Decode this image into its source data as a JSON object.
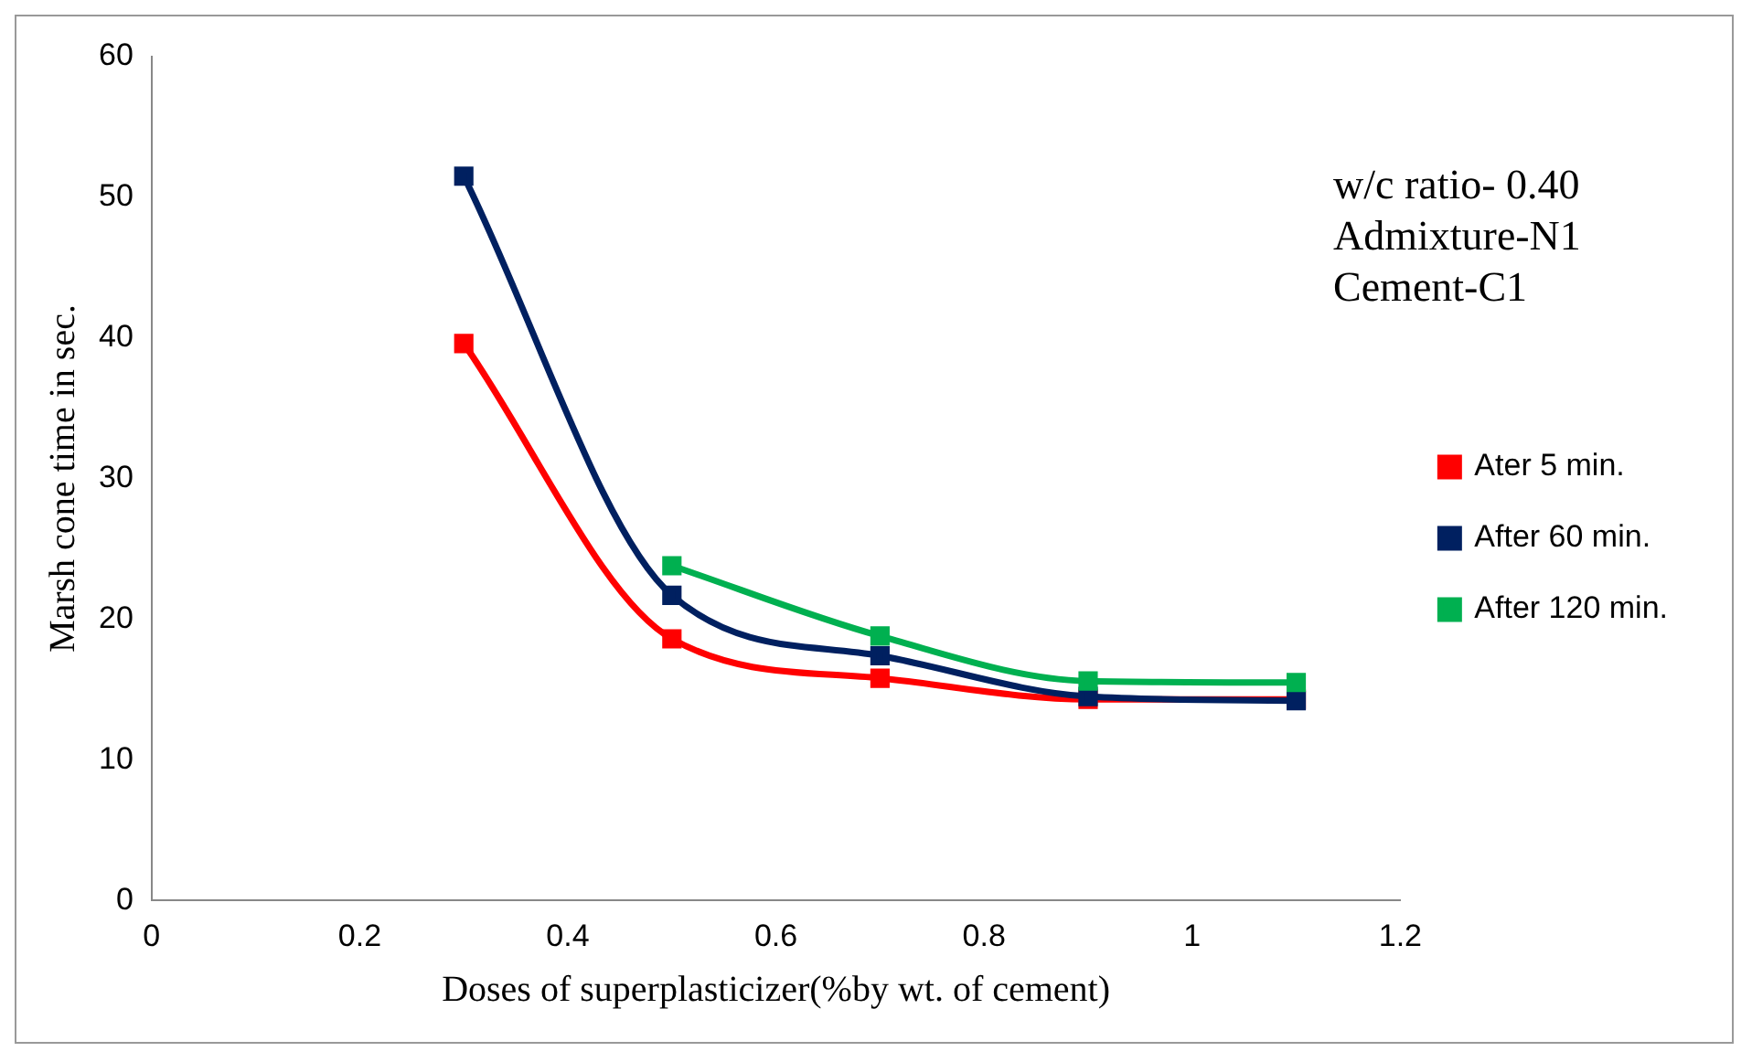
{
  "chart_data": {
    "type": "line",
    "xlabel": "Doses of superplasticizer(%by wt. of cement)",
    "ylabel": "Marsh cone time in sec.",
    "annotations": [
      "w/c ratio- 0.40",
      "Admixture-N1",
      "Cement-C1"
    ],
    "x": [
      0.3,
      0.5,
      0.7,
      0.9,
      1.1
    ],
    "series": [
      {
        "name": "Ater 5 min.",
        "color": "#ff0000",
        "values": [
          39.6,
          18.6,
          15.8,
          14.3,
          14.3
        ]
      },
      {
        "name": "After 60 min.",
        "color": "#002060",
        "values": [
          51.5,
          21.7,
          17.4,
          14.5,
          14.2
        ]
      },
      {
        "name": "After 120 min.",
        "color": "#00b050",
        "x": [
          0.5,
          0.7,
          0.9,
          1.1
        ],
        "values": [
          23.8,
          18.8,
          15.6,
          15.5
        ]
      }
    ],
    "xlim": [
      0,
      1.2
    ],
    "xticks": [
      0,
      0.2,
      0.4,
      0.6,
      0.8,
      1,
      1.2
    ],
    "ylim": [
      0,
      60
    ],
    "yticks": [
      0,
      10,
      20,
      30,
      40,
      50,
      60
    ],
    "grid": false,
    "legend": "right",
    "marker": "square",
    "line_style": "solid"
  }
}
